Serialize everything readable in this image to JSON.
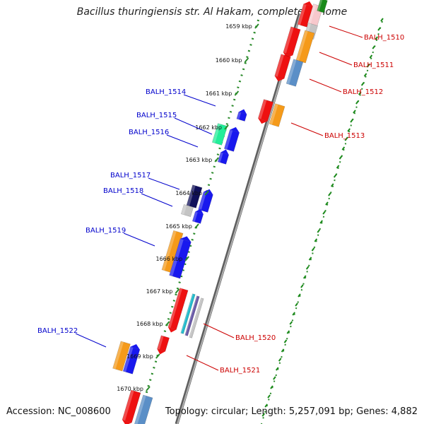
{
  "title": "Bacillus thuringiensis str. Al Hakam, complete genome",
  "accession": "Accession: NC_008600",
  "summary": "Topology: circular; Length: 5,257,091 bp; Genes: 4,882",
  "colors": {
    "backbone": "#8a8a8a",
    "tick_dots": "#2a8a2a",
    "label_forward": "#0000cc",
    "label_reverse": "#cc0000",
    "red": "#ee1111",
    "orange": "#f59a1a",
    "blue": "#1818ee",
    "navy": "#10105a",
    "green": "#22ee99",
    "gray": "#c4c4c4",
    "steel": "#5b8fc7",
    "pink": "#f7c8cc",
    "darkgreen": "#1a8a1a",
    "cyan": "#22bbcc",
    "purple": "#6a5aa8"
  },
  "kbp_labels": [
    {
      "pos": 1659,
      "text": "1659 kbp"
    },
    {
      "pos": 1660,
      "text": "1660 kbp"
    },
    {
      "pos": 1661,
      "text": "1661 kbp"
    },
    {
      "pos": 1662,
      "text": "1662 kbp"
    },
    {
      "pos": 1663,
      "text": "1663 kbp"
    },
    {
      "pos": 1664,
      "text": "1664 kbp"
    },
    {
      "pos": 1665,
      "text": "1665 kbp"
    },
    {
      "pos": 1666,
      "text": "1666 kbp"
    },
    {
      "pos": 1667,
      "text": "1667 kbp"
    },
    {
      "pos": 1668,
      "text": "1668 kbp"
    },
    {
      "pos": 1669,
      "text": "1669 kbp"
    },
    {
      "pos": 1670,
      "text": "1670 kbp"
    }
  ],
  "gene_labels_left": [
    "BALH_1514",
    "BALH_1515",
    "BALH_1516",
    "BALH_1517",
    "BALH_1518",
    "BALH_1519",
    "BALH_1522"
  ],
  "gene_labels_right": [
    "BALH_1510",
    "BALH_1511",
    "BALH_1512",
    "BALH_1513",
    "BALH_1520",
    "BALH_1521"
  ]
}
